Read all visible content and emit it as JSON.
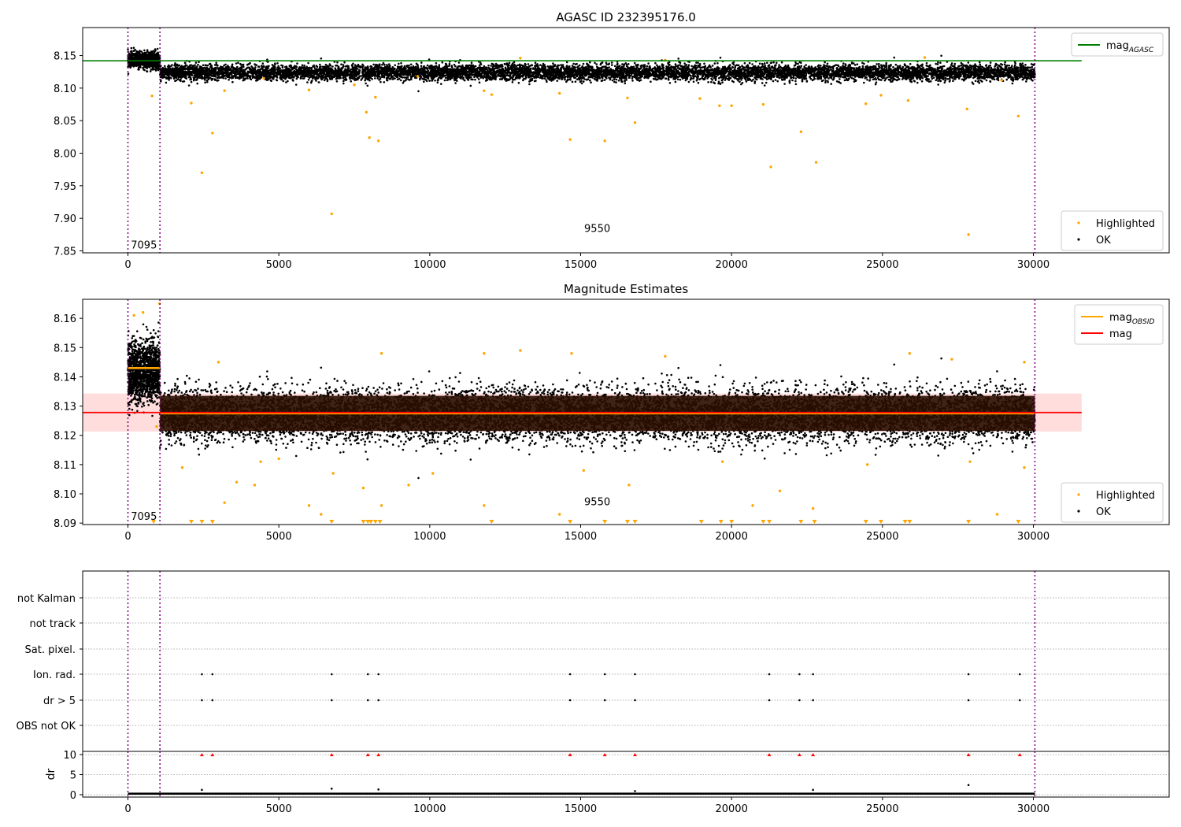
{
  "chart_data": [
    {
      "type": "scatter",
      "title": "AGASC ID 232395176.0",
      "xlabel": "",
      "ylabel": "",
      "xlim": [
        -1500,
        34500
      ],
      "ylim": [
        7.847,
        8.193
      ],
      "xticks": [
        0,
        5000,
        10000,
        15000,
        20000,
        25000,
        30000
      ],
      "yticks": [
        7.85,
        7.9,
        7.95,
        8.0,
        8.05,
        8.1,
        8.15
      ],
      "ytick_labels": [
        "7.85",
        "7.90",
        "7.95",
        "8.00",
        "8.05",
        "8.10",
        "8.15"
      ],
      "obsid_boundaries": [
        0,
        1060,
        30050
      ],
      "obsid_labels": [
        {
          "text": "7095",
          "x": 530,
          "y": 7.86
        },
        {
          "text": "9550",
          "x": 15550,
          "y": 7.885
        }
      ],
      "hlines": [
        {
          "name": "mag",
          "sub": "AGASC",
          "y": 8.142,
          "color": "#008000"
        }
      ],
      "ok_bands": [
        {
          "x0": 0,
          "x1": 1060,
          "center": 8.143,
          "spread": 0.006
        },
        {
          "x0": 1060,
          "x1": 30050,
          "center": 8.124,
          "spread": 0.006
        }
      ],
      "highlighted_points": [
        [
          800,
          8.088
        ],
        [
          2100,
          8.077
        ],
        [
          2450,
          7.97
        ],
        [
          2800,
          8.031
        ],
        [
          3200,
          8.096
        ],
        [
          6000,
          8.097
        ],
        [
          6750,
          7.907
        ],
        [
          7500,
          8.105
        ],
        [
          7900,
          8.063
        ],
        [
          8000,
          8.024
        ],
        [
          8200,
          8.086
        ],
        [
          8300,
          8.019
        ],
        [
          11800,
          8.096
        ],
        [
          12050,
          8.09
        ],
        [
          14300,
          8.092
        ],
        [
          14650,
          8.021
        ],
        [
          15800,
          8.019
        ],
        [
          16550,
          8.085
        ],
        [
          16800,
          8.047
        ],
        [
          18950,
          8.084
        ],
        [
          19600,
          8.073
        ],
        [
          20000,
          8.073
        ],
        [
          21050,
          8.075
        ],
        [
          21300,
          7.979
        ],
        [
          22300,
          8.033
        ],
        [
          22800,
          7.986
        ],
        [
          24450,
          8.076
        ],
        [
          24950,
          8.089
        ],
        [
          25850,
          8.081
        ],
        [
          27800,
          8.068
        ],
        [
          27850,
          7.875
        ],
        [
          29500,
          8.057
        ],
        [
          4500,
          8.115
        ],
        [
          9600,
          8.118
        ],
        [
          13000,
          8.146
        ],
        [
          17800,
          8.143
        ],
        [
          26400,
          8.147
        ],
        [
          28950,
          8.112
        ]
      ],
      "legends": [
        {
          "position": "upper right",
          "entries": [
            {
              "label": "mag",
              "sub": "AGASC",
              "kind": "line",
              "color": "#008000"
            }
          ]
        },
        {
          "position": "lower right",
          "entries": [
            {
              "label": "Highlighted",
              "kind": "dot",
              "color": "#ffa500"
            },
            {
              "label": "OK",
              "kind": "dot",
              "color": "#000000"
            }
          ]
        }
      ]
    },
    {
      "type": "scatter",
      "title": "Magnitude Estimates",
      "xlabel": "",
      "ylabel": "",
      "xlim": [
        -1500,
        34500
      ],
      "ylim": [
        8.0895,
        8.1665
      ],
      "xticks": [
        0,
        5000,
        10000,
        15000,
        20000,
        25000,
        30000
      ],
      "yticks": [
        8.09,
        8.1,
        8.11,
        8.12,
        8.13,
        8.14,
        8.15,
        8.16
      ],
      "ytick_labels": [
        "8.09",
        "8.10",
        "8.11",
        "8.12",
        "8.13",
        "8.14",
        "8.15",
        "8.16"
      ],
      "obsid_boundaries": [
        0,
        1060,
        30050
      ],
      "obsid_labels": [
        {
          "text": "7095",
          "x": 530,
          "y": 8.0925
        },
        {
          "text": "9550",
          "x": 15550,
          "y": 8.0975
        }
      ],
      "mag_band": {
        "y0": 8.1213,
        "y1": 8.1343,
        "x0": -1500,
        "x1": 31600,
        "color": "#ffdddd"
      },
      "lines": [
        {
          "name": "mag",
          "sub": "OBSID",
          "color": "#ffa500",
          "segments": [
            [
              0,
              1060,
              8.143
            ],
            [
              1060,
              30050,
              8.1275
            ]
          ]
        },
        {
          "name": "mag",
          "color": "#ff0000",
          "segments": [
            [
              -1500,
              31600,
              8.1278
            ]
          ]
        }
      ],
      "ok_bands": [
        {
          "x0": 0,
          "x1": 1060,
          "center": 8.142,
          "spread": 0.005
        },
        {
          "x0": 1060,
          "x1": 30050,
          "center": 8.127,
          "spread": 0.0045
        }
      ],
      "highlighted_points": [
        [
          200,
          8.161
        ],
        [
          500,
          8.162
        ],
        [
          950,
          8.123
        ],
        [
          1050,
          8.165
        ],
        [
          1800,
          8.109
        ],
        [
          3200,
          8.097
        ],
        [
          3600,
          8.104
        ],
        [
          4200,
          8.103
        ],
        [
          4400,
          8.111
        ],
        [
          5000,
          8.112
        ],
        [
          6000,
          8.096
        ],
        [
          6400,
          8.093
        ],
        [
          6800,
          8.107
        ],
        [
          7800,
          8.102
        ],
        [
          8400,
          8.096
        ],
        [
          9300,
          8.103
        ],
        [
          10100,
          8.107
        ],
        [
          11800,
          8.096
        ],
        [
          14300,
          8.093
        ],
        [
          15100,
          8.108
        ],
        [
          16600,
          8.103
        ],
        [
          19700,
          8.111
        ],
        [
          20700,
          8.096
        ],
        [
          21600,
          8.101
        ],
        [
          22700,
          8.095
        ],
        [
          24500,
          8.11
        ],
        [
          27900,
          8.111
        ],
        [
          28800,
          8.093
        ],
        [
          29700,
          8.109
        ],
        [
          3000,
          8.145
        ],
        [
          8400,
          8.148
        ],
        [
          11800,
          8.148
        ],
        [
          13000,
          8.149
        ],
        [
          14700,
          8.148
        ],
        [
          17800,
          8.147
        ],
        [
          25900,
          8.148
        ],
        [
          27300,
          8.146
        ],
        [
          29700,
          8.145
        ]
      ],
      "clipped_points_x": [
        850,
        2100,
        2450,
        2800,
        6750,
        7800,
        7950,
        8050,
        8200,
        8350,
        12050,
        14650,
        15800,
        16550,
        16800,
        19000,
        19650,
        20000,
        21050,
        21250,
        22300,
        22750,
        24450,
        24950,
        25750,
        25900,
        27850,
        29500
      ],
      "legends": [
        {
          "position": "upper right",
          "entries": [
            {
              "label": "mag",
              "sub": "OBSID",
              "kind": "line",
              "color": "#ffa500"
            },
            {
              "label": "mag",
              "kind": "line",
              "color": "#ff0000"
            }
          ]
        },
        {
          "position": "lower right",
          "entries": [
            {
              "label": "Highlighted",
              "kind": "dot",
              "color": "#ffa500"
            },
            {
              "label": "OK",
              "kind": "dot",
              "color": "#000000"
            }
          ]
        }
      ]
    },
    {
      "type": "scatter",
      "title": "",
      "xlabel": "",
      "ylabel": "",
      "xlim": [
        -1500,
        34500
      ],
      "categories": [
        "not Kalman",
        "not track",
        "Sat. pixel.",
        "Ion. rad.",
        "dr > 5",
        "OBS not OK"
      ],
      "flag_points": {
        "Ion. rad.": [
          2450,
          2800,
          6750,
          7950,
          8300,
          14650,
          15800,
          16800,
          21250,
          22250,
          22700,
          27850,
          29550
        ],
        "dr > 5": [
          2450,
          2800,
          6750,
          7950,
          8300,
          14650,
          15800,
          16800,
          21250,
          22250,
          22700,
          27850,
          29550
        ]
      },
      "obsid_boundaries": [
        0,
        1060,
        30050
      ]
    },
    {
      "type": "scatter",
      "title": "",
      "xlabel": "",
      "ylabel": "dr",
      "xlim": [
        -1500,
        34500
      ],
      "ylim": [
        -0.6,
        10.8
      ],
      "xticks": [
        0,
        5000,
        10000,
        15000,
        20000,
        25000,
        30000
      ],
      "yticks": [
        0,
        5,
        10
      ],
      "ytick_labels": [
        "0",
        "5",
        "10"
      ],
      "clip_markers_x": [
        2450,
        2800,
        6750,
        7950,
        8300,
        14650,
        15800,
        16800,
        21250,
        22250,
        22700,
        27850,
        29550
      ],
      "clip_value": 10,
      "outlier_points": [
        [
          2450,
          1.2
        ],
        [
          6750,
          1.5
        ],
        [
          8300,
          1.3
        ],
        [
          16800,
          0.9
        ],
        [
          22700,
          1.2
        ],
        [
          27850,
          2.4
        ]
      ],
      "baseline": {
        "x0": 0,
        "x1": 30050,
        "max": 0.5
      },
      "obsid_boundaries": [
        0,
        1060,
        30050
      ]
    }
  ]
}
